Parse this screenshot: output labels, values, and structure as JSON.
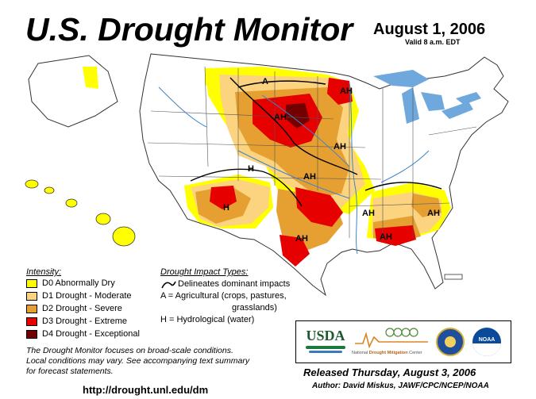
{
  "header": {
    "title": "U.S. Drought Monitor",
    "date": "August 1, 2006",
    "valid": "Valid 8 a.m. EDT"
  },
  "legend": {
    "heading": "Intensity:",
    "items": [
      {
        "label": "D0 Abnormally Dry",
        "color": "#ffff00"
      },
      {
        "label": "D1 Drought - Moderate",
        "color": "#fcd37f"
      },
      {
        "label": "D2 Drought - Severe",
        "color": "#e6a032"
      },
      {
        "label": "D3 Drought - Extreme",
        "color": "#e60000"
      },
      {
        "label": "D4 Drought - Exceptional",
        "color": "#730000"
      }
    ]
  },
  "impact": {
    "heading": "Drought Impact Types:",
    "line1": "Delineates dominant impacts",
    "line2": "A = Agricultural (crops, pastures,",
    "line3": "grasslands)",
    "line4": "H = Hydrological (water)"
  },
  "map_labels": {
    "a_north": "A",
    "ah_dakota": "AH",
    "ah_minn": "AH",
    "ah_iowa": "AH",
    "ah_kansas": "AH",
    "h_colorado": "H",
    "h_arizona": "H",
    "ah_texas": "AH",
    "ah_ark": "AH",
    "ah_carolina": "AH",
    "ah_gulf": "AH"
  },
  "note": {
    "line1": "The Drought Monitor focuses on broad-scale conditions.",
    "line2": "Local conditions may vary. See accompanying text summary",
    "line3": "for forecast statements."
  },
  "footer": {
    "url": "http://drought.unl.edu/dm",
    "released": "Released Thursday, August 3, 2006",
    "author": "Author: David Miskus, JAWF/CPC/NCEP/NOAA"
  },
  "logos": {
    "usda": "USDA",
    "ndmc_a": "National",
    "ndmc_b": "Drought Mitigation",
    "ndmc_c": "Center",
    "noaa": "NOAA"
  },
  "colors": {
    "water": "#6fa8dc",
    "land": "#ffffff",
    "d0": "#ffff00",
    "d1": "#fcd37f",
    "d2": "#e6a032",
    "d3": "#e60000",
    "d4": "#730000"
  }
}
